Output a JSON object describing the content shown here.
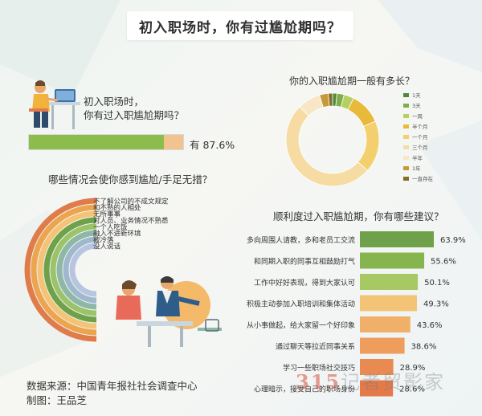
{
  "title": "初入职场时，你有过尴尬期吗？",
  "q1": {
    "line1": "初入职场时，",
    "line2": "你有过入职尴尬期吗？",
    "answer_label": "有 87.6%",
    "value": 87.6,
    "colors": {
      "fill": "#8cbd4c",
      "rest": "#f1c48f"
    }
  },
  "q2": {
    "title": "哪些情况会使你感到尴尬/手足无措？",
    "items": [
      "不了解公司的不成文规定",
      "和不熟的人相处",
      "无所事事",
      "对人员、业务情况不熟悉",
      "一个人吃饭",
      "融入不进新环境",
      "被冷落",
      "没人说话"
    ],
    "colors": [
      "#e07b4a",
      "#eda44f",
      "#f3c476",
      "#6fa04a",
      "#9bc46a",
      "#8fb7a6",
      "#9fb8cc",
      "#b7c5e0"
    ]
  },
  "q3": {
    "title": "你的入职尴尬期一般有多长？",
    "legend": [
      "1天",
      "3天",
      "一周",
      "半个月",
      "一个月",
      "三个月",
      "半年",
      "1年",
      "一直存在"
    ],
    "colors": [
      "#4d8a3b",
      "#7cae4b",
      "#b6cf63",
      "#e8b93a",
      "#f4cf6e",
      "#f6dca2",
      "#f8e6c6",
      "#c59a3b",
      "#8a6b25"
    ]
  },
  "q4": {
    "title": "顺利度过入职尴尬期，你有哪些建议？",
    "bar_colors": [
      "#6fa04a",
      "#86b550",
      "#a6c964",
      "#f3c476",
      "#f1b06a",
      "#ef9d5d",
      "#e88a52",
      "#e37a48"
    ]
  },
  "chart_data": [
    {
      "type": "pie",
      "title": "你的入职尴尬期一般有多长？",
      "categories": [
        "1天",
        "3天",
        "一周",
        "半个月",
        "一个月",
        "三个月",
        "半年",
        "1年",
        "一直存在"
      ],
      "values": [
        1.5,
        2.5,
        3.5,
        11,
        18,
        51,
        8,
        3,
        1.5
      ]
    },
    {
      "type": "bar",
      "title": "顺利度过入职尴尬期，你有哪些建议？",
      "categories": [
        "多向周围人请教，多和老员工交流",
        "和同期入职的同事互相鼓励打气",
        "工作中好好表现，得到大家认可",
        "积极主动参加入职培训和集体活动",
        "从小事做起，给大家留一个好印象",
        "通过聊天等拉近同事关系",
        "学习一些职场社交技巧",
        "心理暗示，接受自己的职场身份"
      ],
      "values": [
        63.9,
        55.6,
        50.1,
        49.3,
        43.6,
        38.6,
        28.9,
        28.6
      ],
      "labels": [
        "63.9%",
        "55.6%",
        "50.1%",
        "49.3%",
        "43.6%",
        "38.6%",
        "28.9%",
        "28.6%"
      ]
    }
  ],
  "source": {
    "line1": "数据来源：中国青年报社社会调查中心",
    "line2": "制图：王品芝"
  },
  "watermark": {
    "brand": "315",
    "text": "记者贸影家"
  }
}
